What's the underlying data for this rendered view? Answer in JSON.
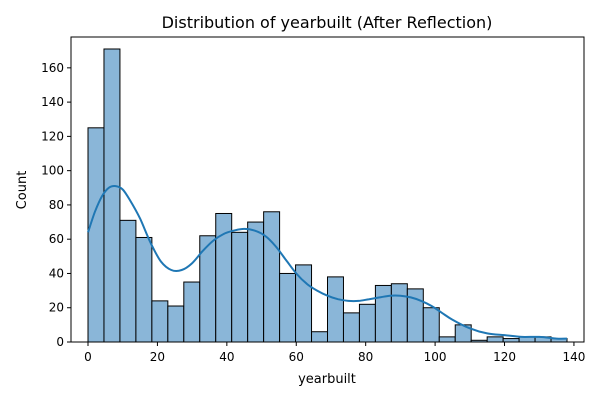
{
  "chart_data": {
    "type": "bar",
    "title": "Distribution of yearbuilt (After Reflection)",
    "xlabel": "yearbuilt",
    "ylabel": "Count",
    "xlim": [
      -4.9,
      142.9
    ],
    "ylim": [
      0,
      178
    ],
    "xticks": [
      0,
      20,
      40,
      60,
      80,
      100,
      120,
      140
    ],
    "yticks": [
      0,
      20,
      40,
      60,
      80,
      100,
      120,
      140,
      160
    ],
    "bar_color": "#8ab6d8",
    "bar_edge_color": "#000000",
    "kde_color": "#1f77b4",
    "bins": {
      "start": 0,
      "width": 4.6,
      "counts": [
        125,
        171,
        71,
        61,
        24,
        21,
        35,
        62,
        75,
        64,
        70,
        76,
        40,
        45,
        6,
        38,
        17,
        22,
        33,
        34,
        31,
        20,
        3,
        10,
        1,
        3,
        2,
        3,
        3,
        2
      ]
    },
    "kde_curve": {
      "x": [
        0,
        2,
        4,
        6,
        8,
        10,
        12,
        15,
        18,
        21,
        24,
        27,
        30,
        33,
        36,
        39,
        42,
        45,
        48,
        51,
        54,
        57,
        60,
        63,
        66,
        69,
        72,
        75,
        78,
        81,
        84,
        87,
        90,
        93,
        96,
        99,
        102,
        105,
        110,
        115,
        120,
        125,
        130,
        135,
        138
      ],
      "y": [
        64,
        76,
        85,
        90,
        91,
        89,
        83,
        72,
        58,
        47,
        42,
        42,
        46,
        53,
        59,
        63,
        65,
        66,
        65,
        62,
        56,
        48,
        40,
        34,
        30,
        27,
        25,
        24,
        24,
        25,
        26,
        27,
        27,
        26,
        24,
        21,
        17,
        13,
        8,
        5,
        4,
        3,
        3,
        2,
        2
      ]
    }
  }
}
